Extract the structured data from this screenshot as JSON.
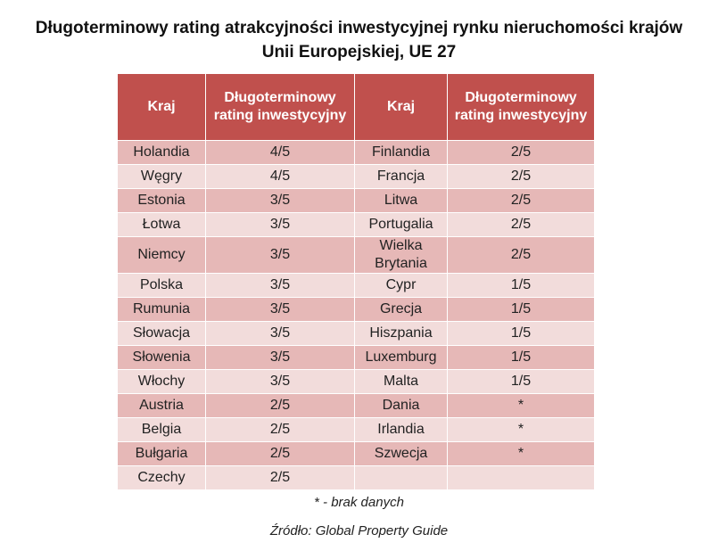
{
  "title": "Długoterminowy rating atrakcyjności inwestycyjnej rynku nieruchomości krajów Unii Europejskiej, UE 27",
  "table": {
    "header": [
      "Kraj",
      "Długoterminowy rating inwestycyjny",
      "Kraj",
      "Długoterminowy rating inwestycyjny"
    ],
    "rows": [
      [
        "Holandia",
        "4/5",
        "Finlandia",
        "2/5"
      ],
      [
        "Węgry",
        "4/5",
        "Francja",
        "2/5"
      ],
      [
        "Estonia",
        "3/5",
        "Litwa",
        "2/5"
      ],
      [
        "Łotwa",
        "3/5",
        "Portugalia",
        "2/5"
      ],
      [
        "Niemcy",
        "3/5",
        "Wielka Brytania",
        "2/5"
      ],
      [
        "Polska",
        "3/5",
        "Cypr",
        "1/5"
      ],
      [
        "Rumunia",
        "3/5",
        "Grecja",
        "1/5"
      ],
      [
        "Słowacja",
        "3/5",
        "Hiszpania",
        "1/5"
      ],
      [
        "Słowenia",
        "3/5",
        "Luxemburg",
        "1/5"
      ],
      [
        "Włochy",
        "3/5",
        "Malta",
        "1/5"
      ],
      [
        "Austria",
        "2/5",
        "Dania",
        "*"
      ],
      [
        "Belgia",
        "2/5",
        "Irlandia",
        "*"
      ],
      [
        "Bułgaria",
        "2/5",
        "Szwecja",
        "*"
      ],
      [
        "Czechy",
        "2/5",
        null,
        null
      ]
    ]
  },
  "note": "* - brak danych",
  "source": "Źródło: Global Property Guide"
}
